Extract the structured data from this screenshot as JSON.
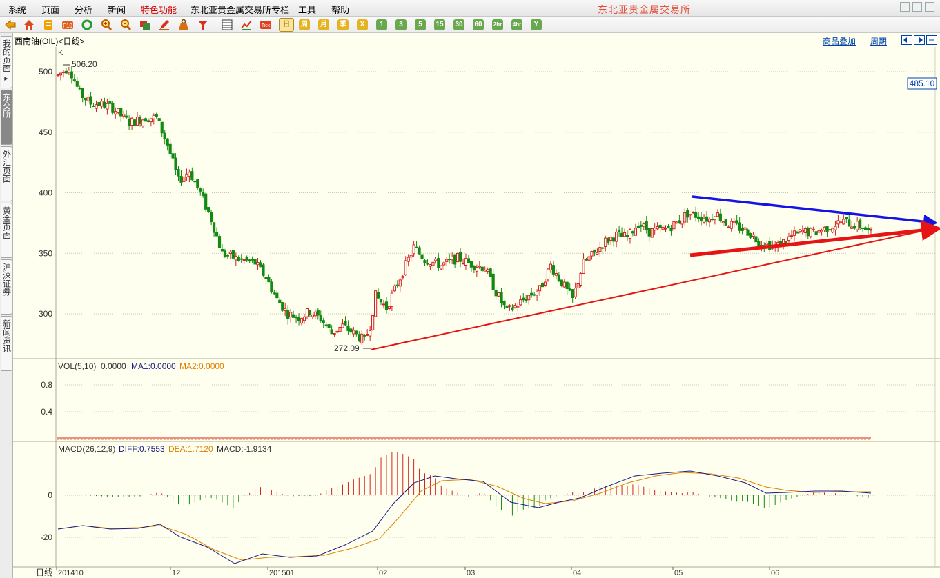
{
  "menu": [
    {
      "label": "系统",
      "special": false
    },
    {
      "label": "页面",
      "special": false
    },
    {
      "label": "分析",
      "special": false
    },
    {
      "label": "新闻",
      "special": false
    },
    {
      "label": "特色功能",
      "special": true
    },
    {
      "label": "东北亚贵金属交易所专栏",
      "special": false
    },
    {
      "label": "工具",
      "special": false
    },
    {
      "label": "帮助",
      "special": false
    }
  ],
  "brand": "东北亚贵金属交易所",
  "toolbar": {
    "period_buttons": [
      "日",
      "周",
      "月",
      "季",
      "X",
      "1",
      "3",
      "5",
      "15",
      "30",
      "60",
      "2hr",
      "4hr",
      "Y"
    ],
    "selected_period": "日"
  },
  "sidetabs": [
    "我的页面",
    "东交所",
    "外汇页面",
    "黄金页面",
    "沪深证券",
    "新闻资讯"
  ],
  "active_sidetab": "东交所",
  "chart_header": {
    "title": "西南油(OIL)<日线>",
    "overlay_link": "商品叠加",
    "period_link": "周期"
  },
  "price_panel": {
    "label": "K",
    "last_price_tag": "485.10",
    "high_label": "506.20",
    "low_label": "272.09",
    "y_ticks": [
      "500",
      "450",
      "400",
      "350",
      "300"
    ]
  },
  "vol_panel": {
    "name": "VOL(5,10)",
    "value": "0.0000",
    "ma1": "MA1:0.0000",
    "ma2": "MA2:0.0000",
    "y_ticks": [
      "0.8",
      "0.4"
    ]
  },
  "macd_panel": {
    "name": "MACD(26,12,9)",
    "diff": "DIFF:0.7553",
    "dea": "DEA:1.7120",
    "macd": "MACD:-1.9134",
    "y_ticks": [
      "0",
      "-20"
    ]
  },
  "x_axis": {
    "period_label": "日线",
    "ticks": [
      "201410",
      "12",
      "201501",
      "02",
      "03",
      "04",
      "05",
      "06"
    ]
  },
  "colors": {
    "up": "#d42020",
    "down": "#138a13",
    "grid": "#c8c8b4",
    "diff_line": "#1a1a80",
    "dea_line": "#e08000",
    "trend_upper": "#1414e6",
    "trend_lower": "#e61414",
    "text_accent": "#e08000"
  }
}
